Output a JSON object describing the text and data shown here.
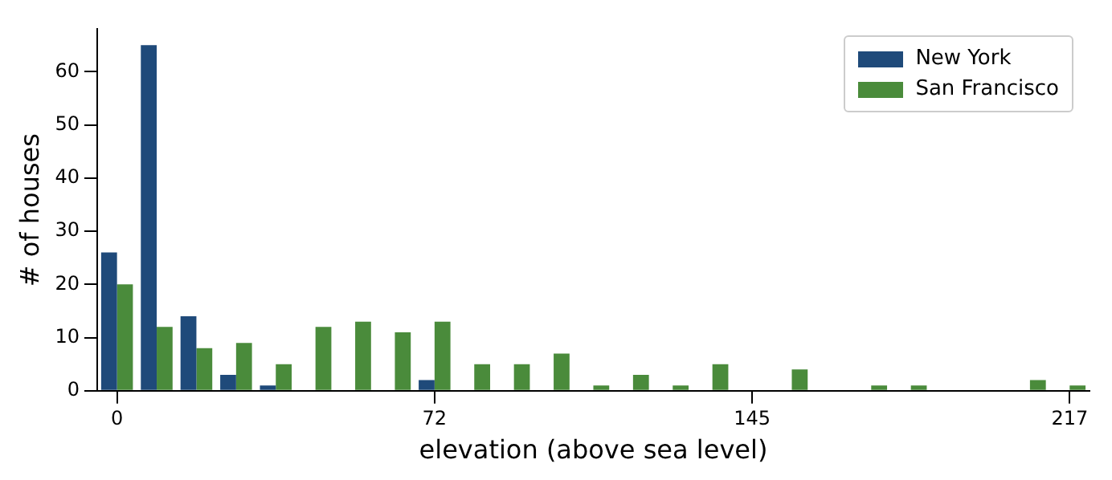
{
  "chart_data": {
    "type": "bar",
    "xlabel": "elevation (above sea level)",
    "ylabel": "# of houses",
    "categories": [
      "0",
      null,
      null,
      null,
      null,
      null,
      null,
      null,
      "72",
      null,
      null,
      null,
      null,
      null,
      null,
      null,
      "145",
      null,
      null,
      null,
      null,
      null,
      null,
      null,
      "217"
    ],
    "series": [
      {
        "name": "New York",
        "color": "#1f4a7a",
        "values": [
          26,
          65,
          14,
          3,
          1,
          0,
          0,
          0,
          2,
          0,
          0,
          0,
          0,
          0,
          0,
          0,
          0,
          0,
          0,
          0,
          0,
          0,
          0,
          0,
          0
        ]
      },
      {
        "name": "San Francisco",
        "color": "#4a8b3b",
        "values": [
          20,
          12,
          8,
          9,
          5,
          12,
          13,
          11,
          13,
          5,
          5,
          7,
          1,
          3,
          1,
          5,
          0,
          4,
          0,
          1,
          1,
          0,
          0,
          2,
          1
        ]
      }
    ],
    "ylim": [
      0,
      68
    ],
    "yticks": [
      0,
      10,
      20,
      30,
      40,
      50,
      60
    ],
    "grid": false,
    "legend": "top right"
  }
}
